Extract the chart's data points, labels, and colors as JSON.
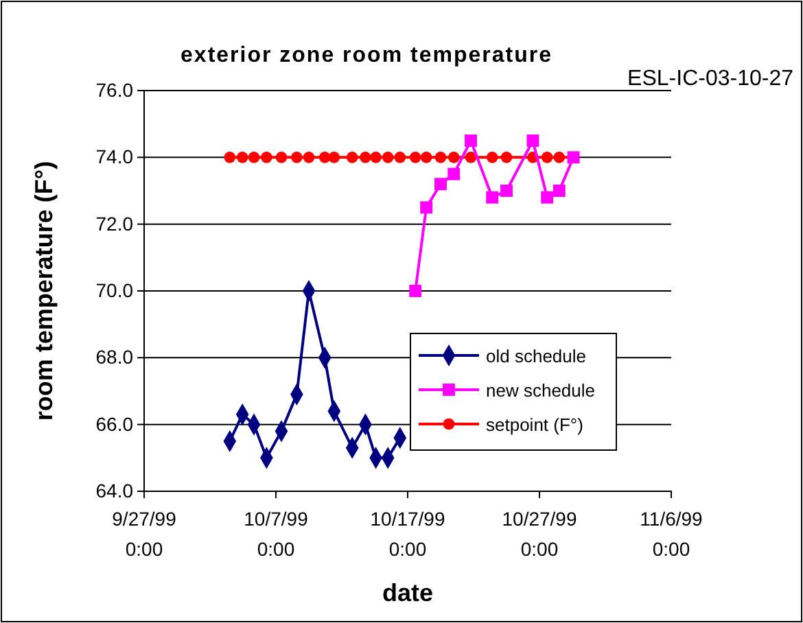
{
  "chart_data": {
    "type": "line",
    "title": "exterior zone room temperature",
    "xlabel": "date",
    "ylabel": "room temperature (F°)",
    "annotations": [
      "ESL-IC-03-10-27"
    ],
    "xlim": [
      "1999-09-27T00:00",
      "1999-11-06T00:00"
    ],
    "xticks": [
      {
        "value": "1999-09-27T00:00",
        "label": "9/27/99 0:00"
      },
      {
        "value": "1999-10-07T00:00",
        "label": "10/7/99 0:00"
      },
      {
        "value": "1999-10-17T00:00",
        "label": "10/17/99 0:00"
      },
      {
        "value": "1999-10-27T00:00",
        "label": "10/27/99 0:00"
      },
      {
        "value": "1999-11-06T00:00",
        "label": "11/6/99 0:00"
      }
    ],
    "ylim": [
      64,
      76
    ],
    "yticks": [
      {
        "value": 64,
        "label": "64.0"
      },
      {
        "value": 66,
        "label": "66.0"
      },
      {
        "value": 68,
        "label": "68.0"
      },
      {
        "value": 70,
        "label": "70.0"
      },
      {
        "value": 72,
        "label": "72.0"
      },
      {
        "value": 74,
        "label": "74.0"
      },
      {
        "value": 76,
        "label": "76.0"
      }
    ],
    "grid": "y",
    "legend": "bottom right",
    "series": [
      {
        "name": "old schedule",
        "color": "#000080",
        "marker": "diamond",
        "x": [
          "1999-10-03T12:00",
          "1999-10-04T11:00",
          "1999-10-05T08:00",
          "1999-10-06T07:00",
          "1999-10-07T10:00",
          "1999-10-08T14:00",
          "1999-10-09T12:00",
          "1999-10-10T17:00",
          "1999-10-11T10:00",
          "1999-10-12T19:00",
          "1999-10-13T19:00",
          "1999-10-14T14:00",
          "1999-10-15T12:00",
          "1999-10-16T10:00"
        ],
        "values": [
          65.5,
          66.3,
          66.0,
          65.0,
          65.8,
          66.9,
          70.0,
          68.0,
          66.4,
          65.3,
          66.0,
          65.0,
          65.0,
          65.6
        ]
      },
      {
        "name": "new schedule",
        "color": "#ff00ff",
        "marker": "square",
        "x": [
          "1999-10-17T14:00",
          "1999-10-18T10:00",
          "1999-10-19T12:00",
          "1999-10-20T12:00",
          "1999-10-21T19:00",
          "1999-10-23T10:00",
          "1999-10-24T12:00",
          "1999-10-26T12:00",
          "1999-10-27T14:00",
          "1999-10-28T12:00",
          "1999-10-29T14:00"
        ],
        "values": [
          70.0,
          72.5,
          73.2,
          73.5,
          74.5,
          72.8,
          73.0,
          74.5,
          72.8,
          73.0,
          74.0
        ]
      },
      {
        "name": "setpoint (F°)",
        "color": "#ff0000",
        "marker": "circle",
        "x": [
          "1999-10-03T12:00",
          "1999-10-04T11:00",
          "1999-10-05T08:00",
          "1999-10-06T07:00",
          "1999-10-07T10:00",
          "1999-10-08T14:00",
          "1999-10-09T12:00",
          "1999-10-10T17:00",
          "1999-10-11T10:00",
          "1999-10-12T19:00",
          "1999-10-13T19:00",
          "1999-10-14T14:00",
          "1999-10-15T12:00",
          "1999-10-16T10:00",
          "1999-10-17T14:00",
          "1999-10-18T10:00",
          "1999-10-19T12:00",
          "1999-10-20T12:00",
          "1999-10-21T19:00",
          "1999-10-23T10:00",
          "1999-10-24T12:00",
          "1999-10-26T12:00",
          "1999-10-27T14:00",
          "1999-10-28T12:00",
          "1999-10-29T14:00"
        ],
        "values": [
          74,
          74,
          74,
          74,
          74,
          74,
          74,
          74,
          74,
          74,
          74,
          74,
          74,
          74,
          74,
          74,
          74,
          74,
          74,
          74,
          74,
          74,
          74,
          74,
          74
        ]
      }
    ]
  }
}
